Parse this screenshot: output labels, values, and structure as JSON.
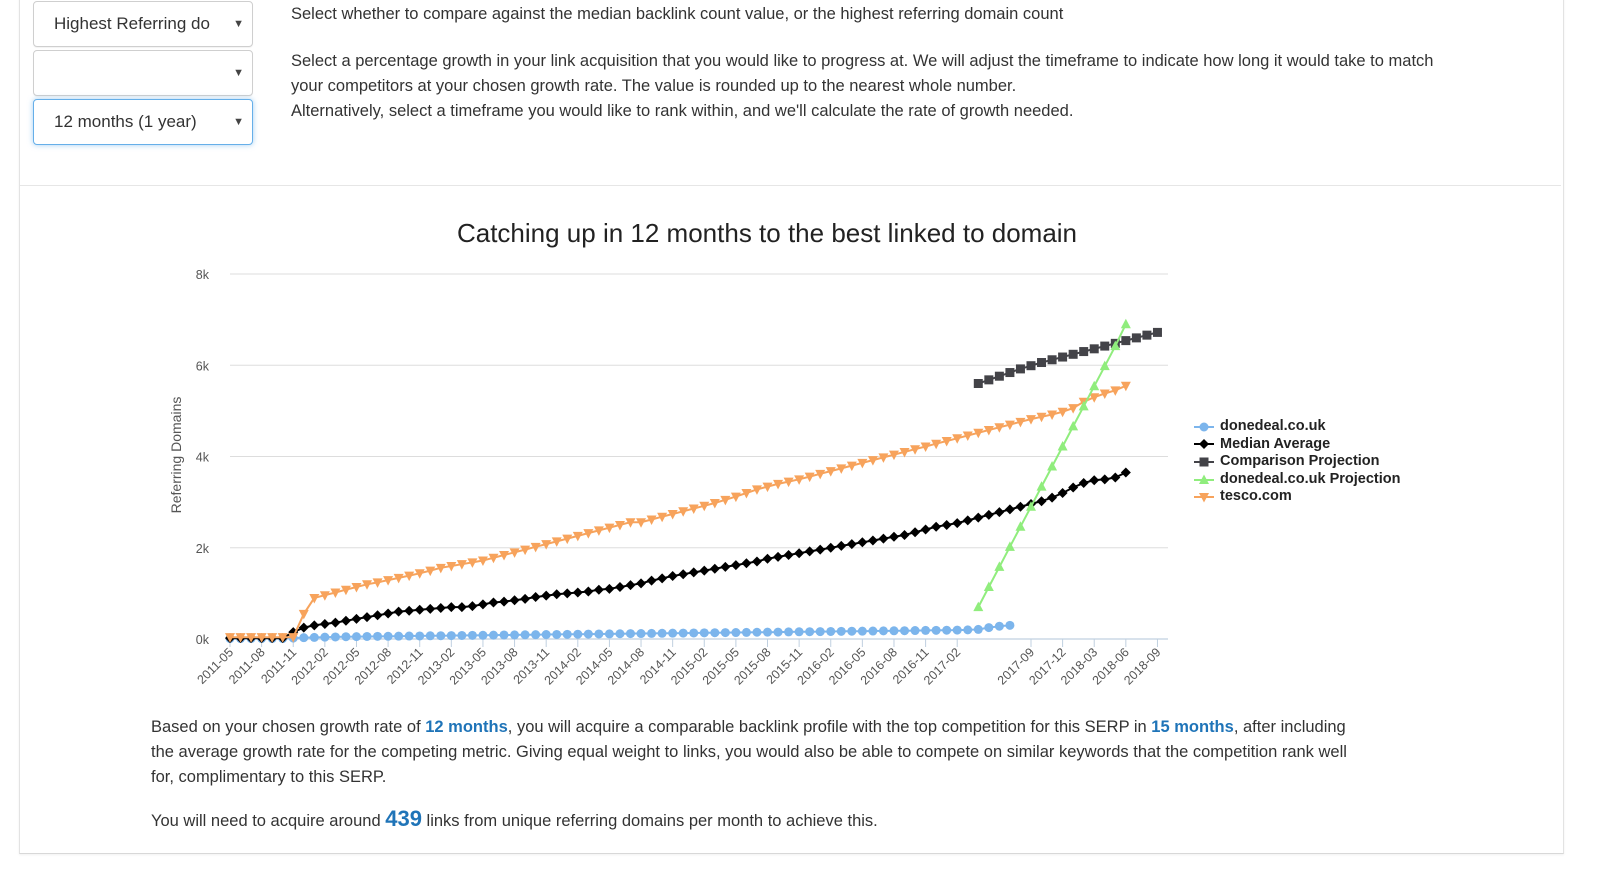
{
  "controls": {
    "metric_select": "Highest Referring do",
    "growth_select": "",
    "timeframe_select": "12 months (1 year)"
  },
  "help": {
    "line1": "Select whether to compare against the median backlink count value, or the highest referring domain count",
    "line2": "Select a percentage growth in your link acquisition that you would like to progress at. We will adjust the timeframe to indicate how long it would take to match",
    "line3": "your competitors at your chosen growth rate. The value is rounded up to the nearest whole number.",
    "line4": "Alternatively, select a timeframe you would like to rank within, and we'll calculate the rate of growth needed."
  },
  "summary": {
    "p1_a": "Based on your chosen growth rate of ",
    "p1_hl1": "12 months",
    "p1_b": ", you will acquire a comparable backlink profile with the top competition for this SERP in ",
    "p1_hl2": "15 months",
    "p1_c": ", after including",
    "p1_line2": "the average growth rate for the competing metric. Giving equal weight to links, you would also be able to compete on similar keywords that the competition rank well",
    "p1_line3": "for, complimentary to this SERP.",
    "p2_a": "You will need to acquire around ",
    "p2_num": "439",
    "p2_b": " links from unique referring domains per month to achieve this."
  },
  "colors": {
    "donedeal": "#7cb5ec",
    "median": "#000000",
    "comparison": "#434348",
    "projection": "#90ed7d",
    "tesco": "#f7a35c",
    "link": "#1f74b8"
  },
  "chart_data": {
    "type": "line",
    "title": "Catching up in 12 months to the best linked to domain",
    "xlabel": "",
    "ylabel": "Referring Domains",
    "ylim": [
      0,
      8000
    ],
    "yticks": [
      "0k",
      "2k",
      "4k",
      "6k",
      "8k"
    ],
    "x_start": "2011-05",
    "x_end": "2018-10",
    "x_ticks": [
      "2011-05",
      "2011-08",
      "2011-11",
      "2012-02",
      "2012-05",
      "2012-08",
      "2012-11",
      "2013-02",
      "2013-05",
      "2013-08",
      "2013-11",
      "2014-02",
      "2014-05",
      "2014-08",
      "2014-11",
      "2015-02",
      "2015-05",
      "2015-08",
      "2015-11",
      "2016-02",
      "2016-05",
      "2016-08",
      "2016-11",
      "2017-02",
      "2017-09",
      "2017-12",
      "2018-03",
      "2018-06",
      "2018-09"
    ],
    "legend_position": "right",
    "grid": true,
    "series": [
      {
        "name": "donedeal.co.uk",
        "color_key": "donedeal",
        "marker": "circle",
        "start": "2011-05",
        "values": [
          10,
          10,
          10,
          10,
          10,
          10,
          20,
          30,
          35,
          40,
          45,
          50,
          52,
          55,
          58,
          60,
          62,
          65,
          67,
          70,
          72,
          75,
          78,
          80,
          82,
          85,
          88,
          90,
          92,
          95,
          98,
          100,
          102,
          105,
          108,
          110,
          112,
          115,
          118,
          120,
          122,
          125,
          128,
          130,
          132,
          135,
          138,
          140,
          142,
          145,
          148,
          150,
          152,
          155,
          158,
          160,
          162,
          165,
          168,
          170,
          172,
          175,
          178,
          180,
          182,
          185,
          188,
          190,
          192,
          195,
          200,
          210,
          250,
          280,
          300
        ]
      },
      {
        "name": "Median Average",
        "color_key": "median",
        "marker": "diamond",
        "start": "2011-05",
        "values": [
          20,
          20,
          20,
          20,
          20,
          20,
          150,
          250,
          300,
          330,
          360,
          400,
          440,
          480,
          520,
          560,
          600,
          620,
          640,
          660,
          680,
          700,
          700,
          720,
          760,
          800,
          820,
          850,
          880,
          920,
          950,
          980,
          1000,
          1020,
          1040,
          1080,
          1100,
          1140,
          1180,
          1220,
          1280,
          1330,
          1380,
          1420,
          1460,
          1500,
          1540,
          1580,
          1620,
          1660,
          1700,
          1760,
          1800,
          1840,
          1880,
          1920,
          1960,
          2000,
          2040,
          2080,
          2120,
          2160,
          2200,
          2240,
          2280,
          2340,
          2400,
          2460,
          2500,
          2540,
          2600,
          2660,
          2720,
          2780,
          2840,
          2900,
          2960,
          3020,
          3100,
          3200,
          3320,
          3420,
          3480,
          3500,
          3540,
          3650
        ]
      },
      {
        "name": "Comparison Projection",
        "color_key": "comparison",
        "marker": "square",
        "start": "2017-04",
        "values": [
          5600,
          5680,
          5760,
          5840,
          5920,
          5990,
          6060,
          6120,
          6180,
          6240,
          6300,
          6360,
          6420,
          6480,
          6540,
          6600,
          6660,
          6720
        ]
      },
      {
        "name": "donedeal.co.uk Projection",
        "color_key": "projection",
        "marker": "triangle",
        "start": "2017-04",
        "values": [
          700,
          1140,
          1580,
          2020,
          2460,
          2900,
          3340,
          3780,
          4220,
          4660,
          5100,
          5540,
          5980,
          6420,
          6900
        ]
      },
      {
        "name": "tesco.com",
        "color_key": "tesco",
        "marker": "triangle-down",
        "start": "2011-05",
        "values": [
          40,
          40,
          40,
          40,
          40,
          40,
          40,
          550,
          900,
          960,
          1020,
          1080,
          1140,
          1200,
          1240,
          1290,
          1340,
          1390,
          1440,
          1500,
          1560,
          1600,
          1640,
          1680,
          1720,
          1780,
          1840,
          1900,
          1960,
          2020,
          2080,
          2140,
          2200,
          2260,
          2320,
          2380,
          2440,
          2500,
          2560,
          2560,
          2620,
          2680,
          2740,
          2800,
          2860,
          2920,
          2980,
          3050,
          3120,
          3200,
          3280,
          3340,
          3400,
          3450,
          3500,
          3560,
          3620,
          3680,
          3740,
          3800,
          3860,
          3920,
          3980,
          4040,
          4100,
          4160,
          4220,
          4280,
          4340,
          4400,
          4460,
          4520,
          4580,
          4640,
          4700,
          4760,
          4820,
          4870,
          4920,
          4980,
          5060,
          5200,
          5300,
          5380,
          5450,
          5550
        ]
      }
    ]
  }
}
